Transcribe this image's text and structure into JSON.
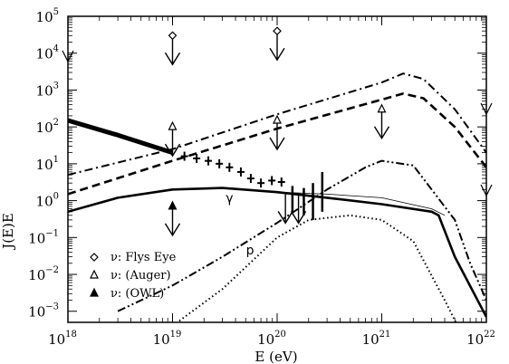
{
  "chart_data": {
    "type": "line",
    "title": "",
    "xlabel": "E (eV)",
    "ylabel": "J(E)E",
    "x_scale": "log",
    "y_scale": "log",
    "xlim": [
      1e+18,
      1e+22
    ],
    "ylim": [
      0.0005,
      100000
    ],
    "x_ticks": [
      {
        "base": "10",
        "exp": "18",
        "value": 1e+18
      },
      {
        "base": "10",
        "exp": "19",
        "value": 1e+19
      },
      {
        "base": "10",
        "exp": "20",
        "value": 1e+20
      },
      {
        "base": "10",
        "exp": "21",
        "value": 1e+21
      },
      {
        "base": "10",
        "exp": "22",
        "value": 1e+22
      }
    ],
    "y_ticks": [
      {
        "base": "10",
        "exp": "−3",
        "value": 0.001
      },
      {
        "base": "10",
        "exp": "−2",
        "value": 0.01
      },
      {
        "base": "10",
        "exp": "−1",
        "value": 0.1
      },
      {
        "base": "10",
        "exp": "0",
        "value": 1
      },
      {
        "base": "10",
        "exp": "1",
        "value": 10
      },
      {
        "base": "10",
        "exp": "2",
        "value": 100
      },
      {
        "base": "10",
        "exp": "3",
        "value": 1000
      },
      {
        "base": "10",
        "exp": "4",
        "value": 10000
      },
      {
        "base": "10",
        "exp": "5",
        "value": 100000
      }
    ],
    "series": [
      {
        "style": "dashdot",
        "x": [
          1e+18,
          1e+19,
          1e+20,
          1e+21,
          1.6e+21,
          2.5e+21,
          5e+21,
          1e+22
        ],
        "y": [
          5,
          25,
          220,
          1600,
          2800,
          2000,
          300,
          20
        ]
      },
      {
        "style": "dashed",
        "x": [
          1e+18,
          1e+19,
          1e+20,
          1e+21,
          1.6e+21,
          2.5e+21,
          5e+21,
          1e+22
        ],
        "y": [
          1.5,
          12,
          90,
          550,
          800,
          600,
          100,
          8
        ]
      },
      {
        "style": "dashdotdot",
        "x": [
          3e+18,
          1e+19,
          3e+19,
          1e+20,
          3e+20,
          7e+20,
          1e+21,
          2e+21,
          3e+21,
          5e+21,
          7e+21,
          1e+22
        ],
        "y": [
          0.001,
          0.005,
          0.03,
          0.25,
          2,
          8,
          12,
          9,
          2,
          0.3,
          0.02,
          0.002
        ]
      },
      {
        "style": "solid-thick",
        "x": [
          1e+18,
          3e+18,
          1e+19,
          3e+19,
          1e+20,
          3e+20,
          1e+21,
          3e+21,
          3.5e+21,
          5e+21,
          1e+22
        ],
        "y": [
          0.5,
          1.2,
          2.0,
          2.2,
          1.7,
          1.2,
          0.8,
          0.5,
          0.4,
          0.03,
          0.0007
        ]
      },
      {
        "style": "solid-thin",
        "x": [
          1e+20,
          3e+20,
          1e+21,
          3e+21,
          4e+21
        ],
        "y": [
          1.7,
          1.5,
          1.2,
          0.6,
          0.4
        ]
      },
      {
        "style": "dotted",
        "x": [
          1e+18,
          1e+19,
          3e+19,
          1e+20,
          2e+20,
          5e+20,
          1e+21,
          2e+21,
          4e+21,
          6e+21
        ],
        "y": [
          5e-05,
          0.0004,
          0.004,
          0.1,
          0.3,
          0.4,
          0.3,
          0.08,
          0.002,
          0.0002
        ]
      },
      {
        "style": "solid-bold",
        "x": [
          1e+18,
          3e+18,
          1e+19
        ],
        "y": [
          150,
          60,
          20
        ]
      }
    ],
    "data_points": [
      {
        "x": 1.3e+19,
        "y": 16
      },
      {
        "x": 1.7e+19,
        "y": 14
      },
      {
        "x": 2.2e+19,
        "y": 12
      },
      {
        "x": 2.8e+19,
        "y": 10
      },
      {
        "x": 3.5e+19,
        "y": 8
      },
      {
        "x": 4.5e+19,
        "y": 6
      },
      {
        "x": 5.6e+19,
        "y": 4
      },
      {
        "x": 7e+19,
        "y": 3
      },
      {
        "x": 8.9e+19,
        "y": 3.5
      },
      {
        "x": 1.1e+20,
        "y": 3.2
      }
    ],
    "error_bars": [
      {
        "x": 1.4e+20,
        "low": 0.5,
        "high": 2.5
      },
      {
        "x": 1.8e+20,
        "low": 0.4,
        "high": 2.2
      },
      {
        "x": 2.2e+20,
        "low": 0.3,
        "high": 3
      },
      {
        "x": 2.7e+20,
        "low": 0.5,
        "high": 6
      }
    ],
    "limits": [
      {
        "marker": "diamond",
        "x": 1e+19,
        "y": 30000
      },
      {
        "marker": "diamond",
        "x": 1e+20,
        "y": 40000
      },
      {
        "marker": "open-triangle",
        "x": 1e+19,
        "y": 100
      },
      {
        "marker": "open-triangle",
        "x": 1e+20,
        "y": 150
      },
      {
        "marker": "open-triangle",
        "x": 1e+21,
        "y": 300
      },
      {
        "marker": "filled-triangle",
        "x": 1e+19,
        "y": 0.7
      },
      {
        "marker": "none",
        "x": 1.2e+20,
        "y": 1.5
      },
      {
        "marker": "none",
        "x": 1.6e+20,
        "y": 1.5
      }
    ],
    "annotations": [
      {
        "text": "γ",
        "x": 3.5e+19,
        "y": 0.9
      },
      {
        "text": "p",
        "x": 5.5e+19,
        "y": 0.035
      }
    ],
    "legend": {
      "placement": "bottom-left",
      "entries": [
        {
          "marker": "diamond",
          "label": "ν: Flys Eye"
        },
        {
          "marker": "open-triangle",
          "label": "ν: (Auger)"
        },
        {
          "marker": "filled-triangle",
          "label": "ν: (OWL)"
        }
      ]
    }
  }
}
